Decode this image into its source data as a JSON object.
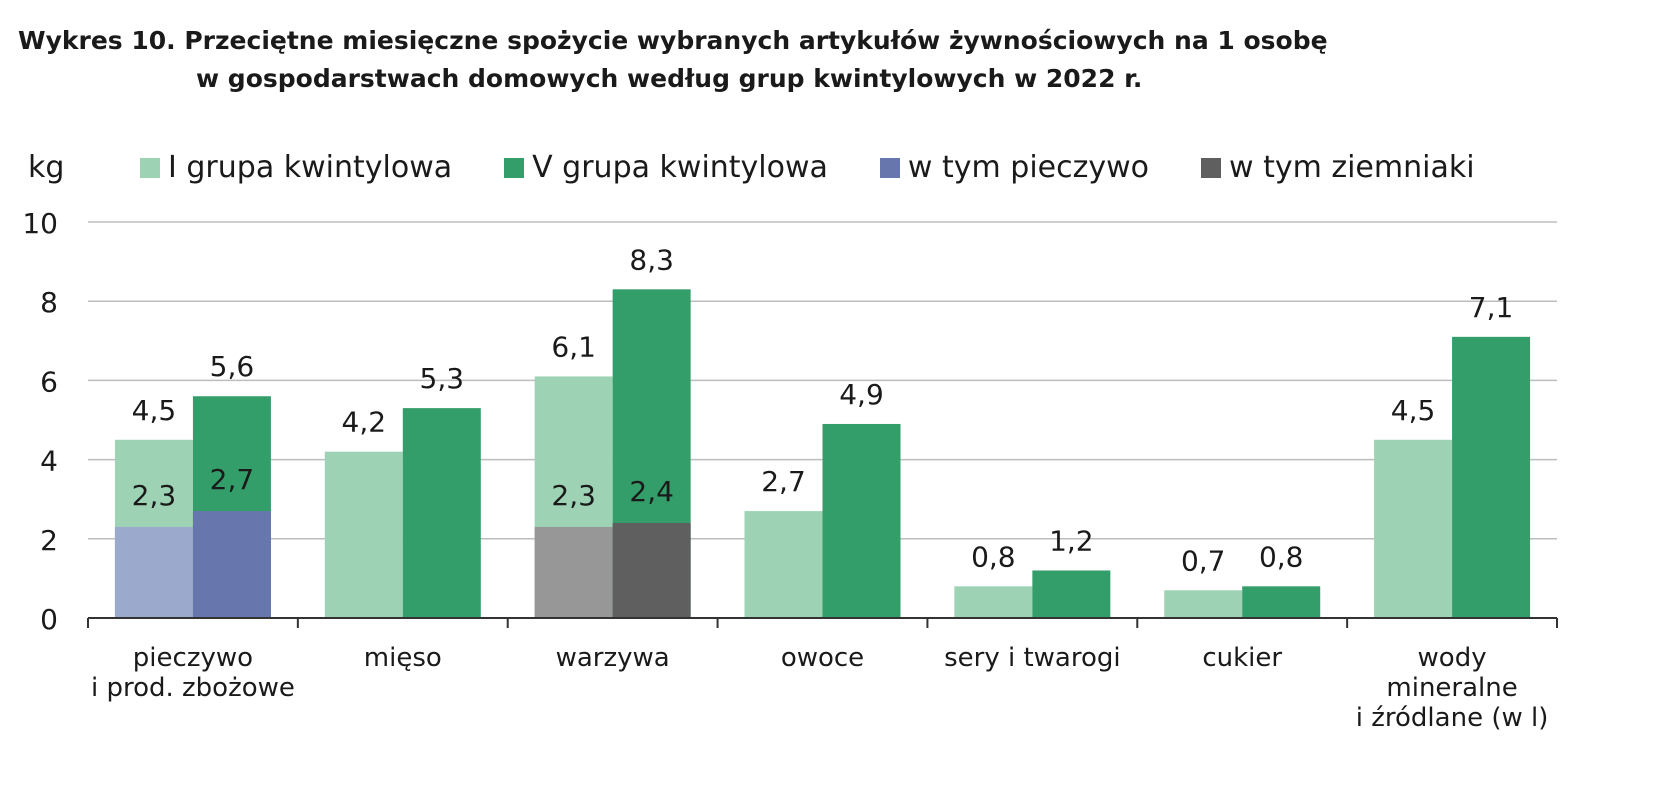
{
  "title": {
    "line1": "Wykres 10. Przeciętne miesięczne spożycie wybranych artykułów żywnościowych na 1 osobę",
    "line2": "w gospodarstwach domowych według grup kwintylowych w 2022 r."
  },
  "chart_data": {
    "type": "bar",
    "ylabel": "kg",
    "ylim": [
      0,
      10
    ],
    "yticks": [
      "0",
      "2",
      "4",
      "6",
      "8",
      "10"
    ],
    "grid": true,
    "legend_position": "top",
    "categories": [
      [
        "pieczywo",
        "i prod. zbożowe"
      ],
      [
        "mięso"
      ],
      [
        "warzywa"
      ],
      [
        "owoce"
      ],
      [
        "sery i twarogi"
      ],
      [
        "cukier"
      ],
      [
        "wody",
        "mineralne",
        "i źródlane (w l)"
      ]
    ],
    "series": [
      {
        "name": "I grupa kwintylowa",
        "values": [
          4.5,
          4.2,
          6.1,
          2.7,
          0.8,
          0.7,
          4.5
        ],
        "labels": [
          "4,5",
          "4,2",
          "6,1",
          "2,7",
          "0,8",
          "0,7",
          "4,5"
        ]
      },
      {
        "name": "V grupa kwintylowa",
        "values": [
          5.6,
          5.3,
          8.3,
          4.9,
          1.2,
          0.8,
          7.1
        ],
        "labels": [
          "5,6",
          "5,3",
          "8,3",
          "4,9",
          "1,2",
          "0,8",
          "7,1"
        ]
      }
    ],
    "subseries": [
      {
        "name": "w tym pieczywo",
        "category_index": 0,
        "values": [
          2.3,
          2.7
        ],
        "labels": [
          "2,3",
          "2,7"
        ]
      },
      {
        "name": "w tym ziemniaki",
        "category_index": 2,
        "values": [
          2.3,
          2.4
        ],
        "labels": [
          "2,3",
          "2,4"
        ]
      }
    ],
    "colors": {
      "I grupa kwintylowa": "#9dd3b4",
      "V grupa kwintylowa": "#339e69",
      "pieczywo_I": "#9ba9cc",
      "pieczywo_V": "#6777ad",
      "ziemniaki_I": "#979797",
      "ziemniaki_V": "#5f5f5f",
      "grid": "#bdbdbd",
      "axis": "#333333"
    },
    "legend": [
      {
        "label": "I grupa kwintylowa",
        "color": "#9dd3b4"
      },
      {
        "label": "V grupa kwintylowa",
        "color": "#339e69"
      },
      {
        "label": "w tym pieczywo",
        "color": "#6777ad"
      },
      {
        "label": "w tym ziemniaki",
        "color": "#5f5f5f"
      }
    ]
  }
}
